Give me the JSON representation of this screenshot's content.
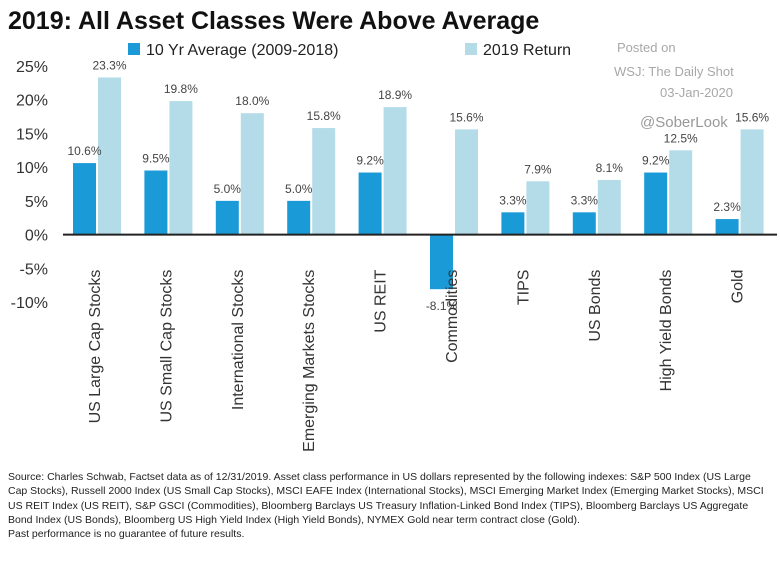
{
  "chart_data": {
    "type": "bar",
    "title": "2019: All Asset Classes Were Above Average",
    "categories": [
      "US Large Cap Stocks",
      "US Small Cap Stocks",
      "International Stocks",
      "Emerging Markets Stocks",
      "US REIT",
      "Commodities",
      "TIPS",
      "US Bonds",
      "High Yield Bonds",
      "Gold"
    ],
    "series": [
      {
        "name": "10 Yr Average (2009-2018)",
        "color": "#1a9bd7",
        "values": [
          10.6,
          9.5,
          5.0,
          5.0,
          9.2,
          -8.1,
          3.3,
          3.3,
          9.2,
          2.3
        ],
        "labels": [
          "10.6%",
          "9.5%",
          "5.0%",
          "5.0%",
          "9.2%",
          "-8.1%",
          "3.3%",
          "3.3%",
          "9.2%",
          "2.3%"
        ]
      },
      {
        "name": "2019 Return",
        "color": "#b4dce8",
        "values": [
          23.3,
          19.8,
          18.0,
          15.8,
          18.9,
          15.6,
          7.9,
          8.1,
          12.5,
          15.6
        ],
        "labels": [
          "23.3%",
          "19.8%",
          "18.0%",
          "15.8%",
          "18.9%",
          "15.6%",
          "7.9%",
          "8.1%",
          "12.5%",
          "15.6%"
        ]
      }
    ],
    "ylim": [
      -10,
      25
    ],
    "yticks": [
      25,
      20,
      15,
      10,
      5,
      0,
      -5,
      -10
    ],
    "ytick_labels": [
      "25%",
      "20%",
      "15%",
      "10%",
      "5%",
      "0%",
      "-5%",
      "-10%"
    ],
    "xlabel": "",
    "ylabel": "",
    "grid": false,
    "legend": "top"
  },
  "watermark": {
    "line1": "Posted on",
    "line2": "WSJ: The Daily Shot",
    "line3": "03-Jan-2020",
    "handle": "@SoberLook"
  },
  "footer": {
    "source": "Source: Charles Schwab, Factset data as of 12/31/2019. Asset class performance in US dollars represented by the following indexes: S&P 500 Index (US Large Cap Stocks), Russell 2000 Index (US Small Cap Stocks), MSCI EAFE Index (International Stocks), MSCI Emerging Market Index (Emerging Market Stocks), MSCI US REIT Index (US REIT), S&P GSCI (Commodities), Bloomberg Barclays US Treasury Inflation-Linked Bond Index (TIPS), Bloomberg Barclays US Aggregate Bond Index (US Bonds), Bloomberg US High Yield Index (High Yield Bonds), NYMEX Gold near term contract close (Gold).",
    "disclaimer": "Past performance is no guarantee of future results."
  }
}
